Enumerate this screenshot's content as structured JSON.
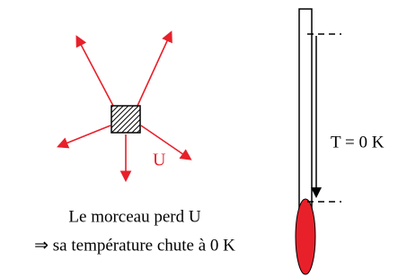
{
  "labels": {
    "energy": "U",
    "temperature": "T = 0 K"
  },
  "caption": {
    "line1": "Le morceau perd U",
    "line2": "⇒ sa température chute à 0 K"
  }
}
